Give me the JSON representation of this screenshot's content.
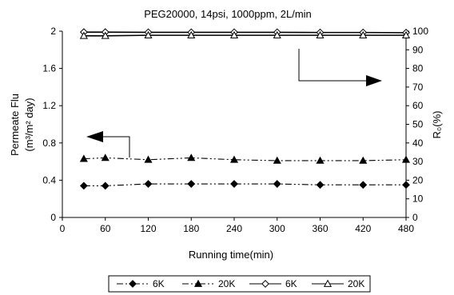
{
  "chart_data": {
    "type": "line",
    "title": "PEG20000, 14psi, 1000ppm, 2L/min",
    "xlabel": "Running time(min)",
    "ylabel_left_line1": "Permeate Flu",
    "ylabel_left_line2": "(m³/m² day)",
    "ylabel_right": "R₀(%)",
    "xlim": [
      0,
      480
    ],
    "ylim_left": [
      0,
      2
    ],
    "ylim_right": [
      0,
      100
    ],
    "x_ticks": [
      "0",
      "60",
      "120",
      "180",
      "240",
      "300",
      "360",
      "420",
      "480"
    ],
    "y_left_ticks": [
      "0",
      "0.4",
      "0.8",
      "1.2",
      "1.6",
      "2"
    ],
    "y_right_ticks": [
      "0",
      "10",
      "20",
      "30",
      "40",
      "50",
      "60",
      "70",
      "80",
      "90",
      "100"
    ],
    "grid": false,
    "legend_position": "bottom",
    "series": [
      {
        "name": "6K",
        "axis": "left",
        "marker": "diamond-filled",
        "line": "dash-dot-dot",
        "x": [
          30,
          60,
          120,
          180,
          240,
          300,
          360,
          420,
          480
        ],
        "y": [
          0.34,
          0.34,
          0.36,
          0.36,
          0.36,
          0.36,
          0.35,
          0.35,
          0.35
        ]
      },
      {
        "name": "20K",
        "axis": "left",
        "marker": "triangle-filled",
        "line": "dash-dot-dot",
        "x": [
          30,
          60,
          120,
          180,
          240,
          300,
          360,
          420,
          480
        ],
        "y": [
          0.63,
          0.64,
          0.62,
          0.64,
          0.62,
          0.61,
          0.61,
          0.61,
          0.62
        ]
      },
      {
        "name": "6K",
        "axis": "right",
        "marker": "diamond-open",
        "line": "solid",
        "x": [
          30,
          60,
          120,
          180,
          240,
          300,
          360,
          420,
          480
        ],
        "y": [
          99.5,
          99.5,
          99.4,
          99.4,
          99.4,
          99.4,
          99.3,
          99.3,
          99.2
        ]
      },
      {
        "name": "20K",
        "axis": "right",
        "marker": "triangle-open",
        "line": "solid",
        "x": [
          30,
          60,
          120,
          180,
          240,
          300,
          360,
          420,
          480
        ],
        "y": [
          97.5,
          97.5,
          97.8,
          97.8,
          97.8,
          97.8,
          97.8,
          97.8,
          97.8
        ]
      }
    ]
  }
}
